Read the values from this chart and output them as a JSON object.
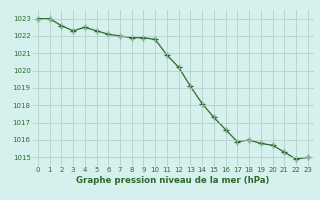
{
  "x": [
    0,
    1,
    2,
    3,
    4,
    5,
    6,
    7,
    8,
    9,
    10,
    11,
    12,
    13,
    14,
    15,
    16,
    17,
    18,
    19,
    20,
    21,
    22,
    23
  ],
  "y": [
    1023.0,
    1023.0,
    1022.6,
    1022.3,
    1022.5,
    1022.3,
    1022.1,
    1022.0,
    1021.9,
    1021.9,
    1021.8,
    1020.9,
    1020.2,
    1019.1,
    1018.1,
    1017.3,
    1016.6,
    1015.9,
    1016.0,
    1015.8,
    1015.7,
    1015.3,
    1014.9,
    1015.0
  ],
  "line_color": "#2d6a2d",
  "marker": "+",
  "marker_size": 4,
  "linewidth": 0.9,
  "bg_color": "#d6f0ee",
  "grid_color": "#b0c8c4",
  "xlabel": "Graphe pression niveau de la mer (hPa)",
  "xlabel_color": "#2d6a2d",
  "tick_color": "#2d6a2d",
  "ylim": [
    1014.5,
    1023.5
  ],
  "yticks": [
    1015,
    1016,
    1017,
    1018,
    1019,
    1020,
    1021,
    1022,
    1023
  ],
  "xticks": [
    0,
    1,
    2,
    3,
    4,
    5,
    6,
    7,
    8,
    9,
    10,
    11,
    12,
    13,
    14,
    15,
    16,
    17,
    18,
    19,
    20,
    21,
    22,
    23
  ],
  "tick_fontsize": 5.0,
  "xlabel_fontsize": 6.2,
  "markeredgewidth": 1.0
}
